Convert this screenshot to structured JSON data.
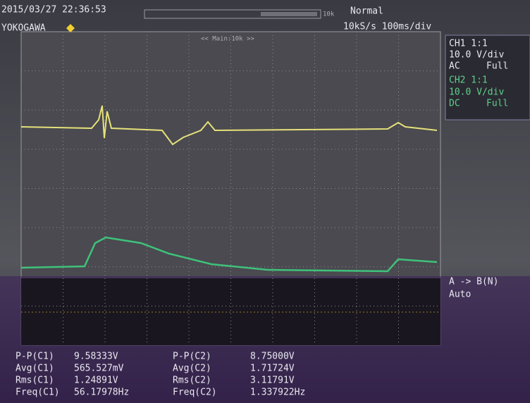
{
  "header": {
    "datetime": "2015/03/27 22:36:53",
    "brand": "YOKOGAWA",
    "record_length": "10k",
    "trigger_mode": "Normal",
    "timebase": "10kS/s 100ms/div",
    "zoom_label": "<< Main:10k >>"
  },
  "channels": [
    {
      "label": "CH1 1:1",
      "scale": "10.0 V/div",
      "coupling": "AC",
      "bandwidth": "Full"
    },
    {
      "label": "CH2 1:1",
      "scale": "10.0 V/div",
      "coupling": "DC",
      "bandwidth": "Full"
    }
  ],
  "trigger": {
    "source": "A -> B(N)",
    "mode": "Auto"
  },
  "measurements": [
    [
      "P-P(C1)",
      "9.58333V",
      "P-P(C2)",
      "8.75000V"
    ],
    [
      "Avg(C1)",
      "565.527mV",
      "Avg(C2)",
      "1.71724V"
    ],
    [
      "Rms(C1)",
      "1.24891V",
      "Rms(C2)",
      "3.11791V"
    ],
    [
      "Freq(C1)",
      "56.17978Hz",
      "Freq(C2)",
      "1.337922Hz"
    ]
  ]
}
